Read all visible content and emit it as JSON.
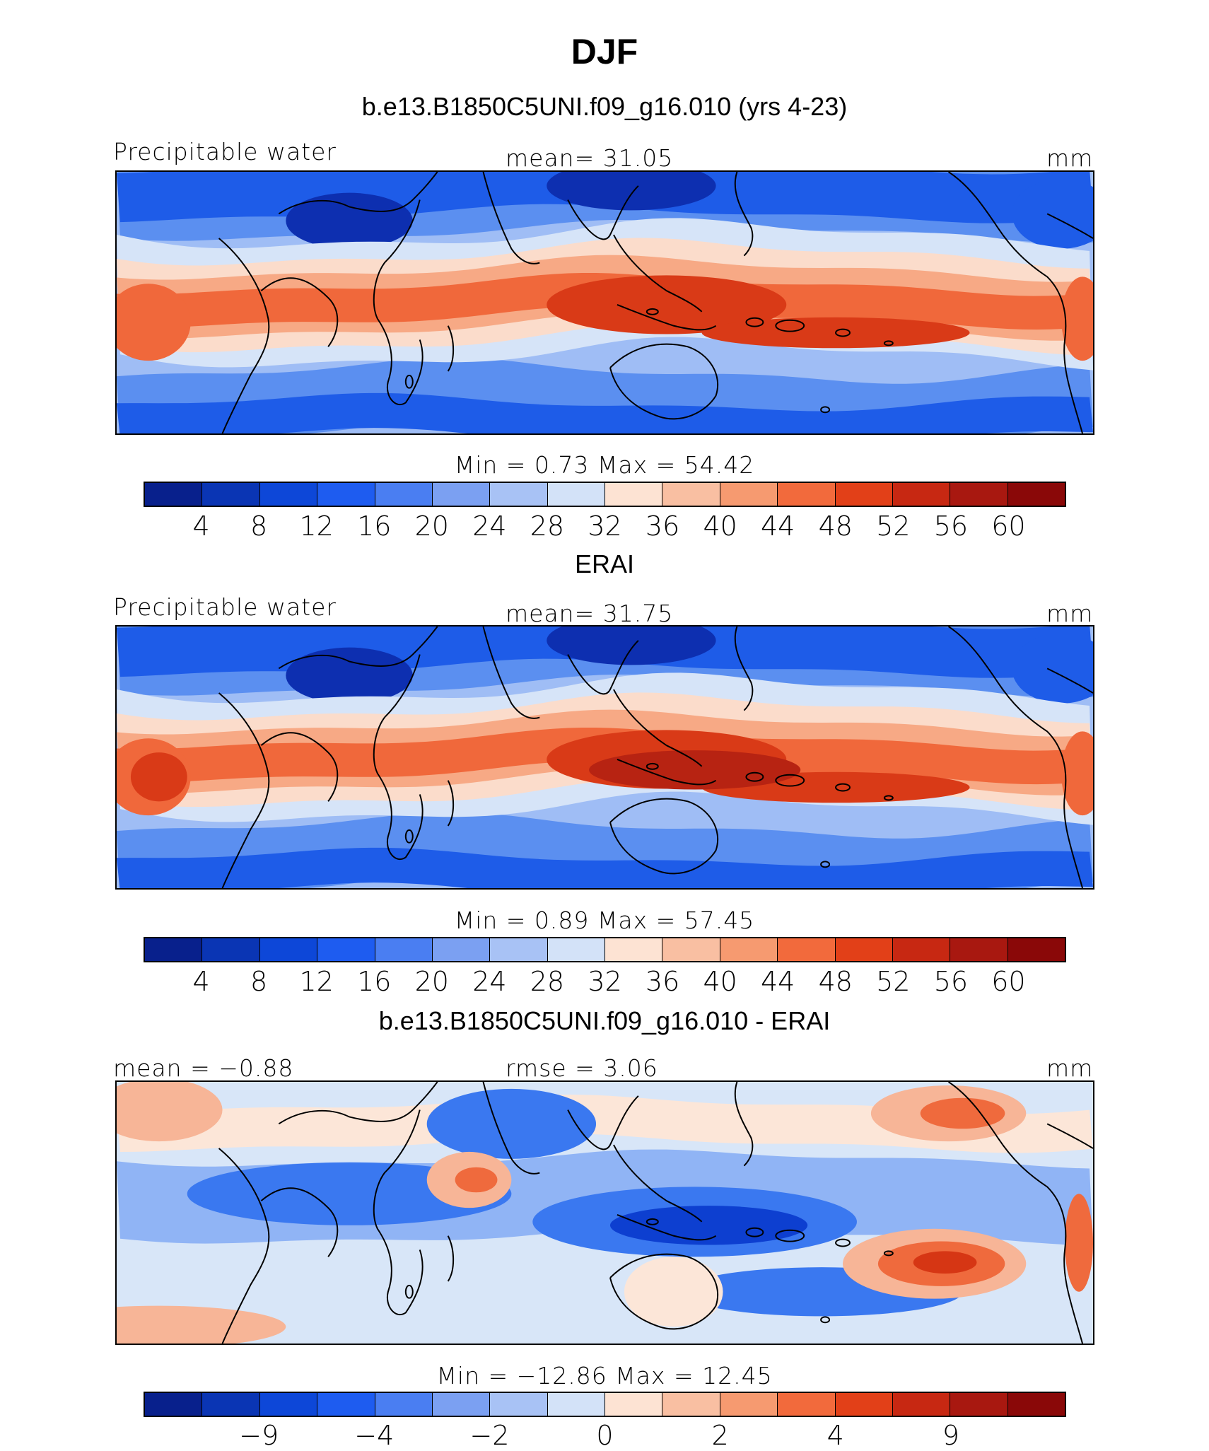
{
  "figure": {
    "title": "DJF"
  },
  "colormaps": {
    "full": [
      "#08208c",
      "#0a35b4",
      "#0d47d8",
      "#1e5cf0",
      "#4a7ef2",
      "#7ba0f2",
      "#a8c2f5",
      "#d3e2f8",
      "#fde3d3",
      "#f9bfa2",
      "#f69a70",
      "#f26a3c",
      "#e24018",
      "#c72812",
      "#a81810",
      "#8a0808"
    ],
    "map_shades": [
      "#0d2fb0",
      "#1e5ce8",
      "#5b8ff0",
      "#9fbdf5",
      "#d6e4f8",
      "#fbdccb",
      "#f7a985",
      "#f0683b",
      "#d93a17",
      "#b72312"
    ],
    "diff_shades": [
      "#0d3fd0",
      "#3a78f0",
      "#90b4f5",
      "#d8e6f8",
      "#fce6d8",
      "#f7b597",
      "#ef6a3d",
      "#d63614"
    ]
  },
  "chart_data": [
    {
      "type": "heatmap",
      "title": "b.e13.B1850C5UNI.f09_g16.010 (yrs 4-23)",
      "left_label": "Precipitable water",
      "center_label": "mean=   31.05",
      "units": "mm",
      "stats": {
        "mean": 31.05,
        "min": 0.73,
        "max": 54.42
      },
      "minmax_text": "Min  =    0.73  Max  =   54.42",
      "levels": [
        "4",
        "8",
        "12",
        "16",
        "20",
        "24",
        "28",
        "32",
        "36",
        "40",
        "44",
        "48",
        "52",
        "56",
        "60"
      ]
    },
    {
      "type": "heatmap",
      "title": "ERAI",
      "left_label": "Precipitable water",
      "center_label": "mean=   31.75",
      "units": "mm",
      "stats": {
        "mean": 31.75,
        "min": 0.89,
        "max": 57.45
      },
      "minmax_text": "Min  =    0.89  Max  =   57.45",
      "levels": [
        "4",
        "8",
        "12",
        "16",
        "20",
        "24",
        "28",
        "32",
        "36",
        "40",
        "44",
        "48",
        "52",
        "56",
        "60"
      ]
    },
    {
      "type": "heatmap",
      "title": "b.e13.B1850C5UNI.f09_g16.010 - ERAI",
      "left_label": "mean =   −0.88",
      "center_label": "rmse =    3.06",
      "units": "mm",
      "stats": {
        "mean": -0.88,
        "rmse": 3.06,
        "min": -12.86,
        "max": 12.45
      },
      "minmax_text": "Min  = −12.86  Max  =   12.45",
      "levels": [
        "−9",
        "−4",
        "−2",
        "0",
        "2",
        "4",
        "9"
      ]
    }
  ]
}
